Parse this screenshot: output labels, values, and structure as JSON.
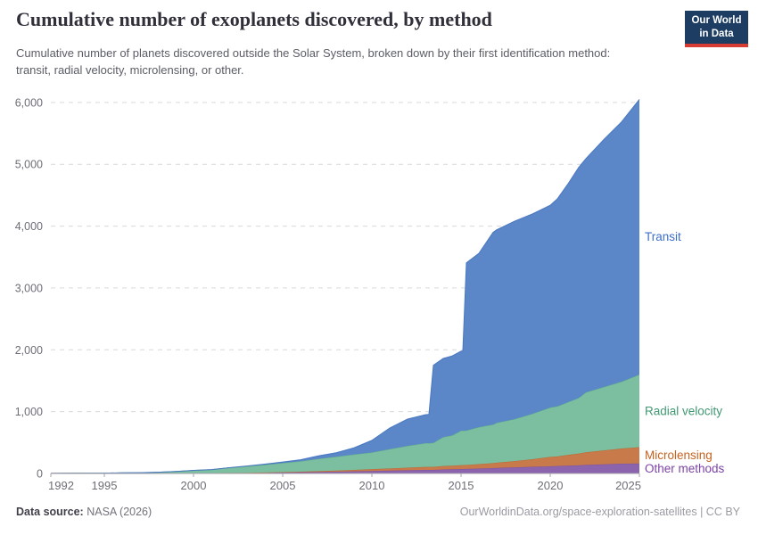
{
  "header": {
    "title": "Cumulative number of exoplanets discovered, by method",
    "subtitle": "Cumulative number of planets discovered outside the Solar System, broken down by their first identification method: transit, radial velocity, microlensing, or other.",
    "logo": {
      "line1": "Our World",
      "line2": "in Data",
      "bg_color": "#1d3d63",
      "accent_color": "#d73c32"
    }
  },
  "chart_data": {
    "type": "area",
    "stacked": true,
    "title": "Cumulative number of exoplanets discovered, by method",
    "xlabel": "",
    "ylabel": "",
    "xlim": [
      1992,
      2025
    ],
    "ylim": [
      0,
      6200
    ],
    "grid": true,
    "legend_position": "labels-at-right-edge",
    "x_ticks": [
      1992,
      1995,
      2000,
      2005,
      2010,
      2015,
      2020,
      2025
    ],
    "y_ticks": [
      0,
      1000,
      2000,
      3000,
      4000,
      5000,
      6000
    ],
    "x": [
      1992,
      1993,
      1994,
      1995,
      1996,
      1997,
      1998,
      1999,
      2000,
      2001,
      2002,
      2003,
      2004,
      2005,
      2006,
      2007,
      2008,
      2009,
      2010,
      2011,
      2012,
      2013,
      2013.2,
      2013.45,
      2014,
      2014.5,
      2015,
      2015.1,
      2015.3,
      2016,
      2016.8,
      2017,
      2018,
      2019,
      2020,
      2020.4,
      2021,
      2021.6,
      2022,
      2023,
      2024,
      2025
    ],
    "series": [
      {
        "name": "Other methods",
        "color": "#8c63ad",
        "edge_color": "#7d53a0",
        "label_color": "#7d43a6",
        "values": [
          2,
          3,
          4,
          4,
          4,
          5,
          5,
          5,
          6,
          7,
          8,
          10,
          13,
          16,
          19,
          23,
          28,
          34,
          40,
          46,
          52,
          58,
          58,
          58,
          65,
          68,
          72,
          72,
          73,
          80,
          87,
          90,
          100,
          108,
          116,
          120,
          126,
          132,
          138,
          148,
          158,
          160
        ]
      },
      {
        "name": "Microlensing",
        "color": "#c87a4a",
        "edge_color": "#b96a35",
        "label_color": "#c6621f",
        "values": [
          0,
          0,
          0,
          0,
          0,
          0,
          0,
          0,
          0,
          0,
          1,
          1,
          3,
          6,
          10,
          14,
          19,
          24,
          30,
          36,
          42,
          48,
          48,
          48,
          55,
          58,
          63,
          63,
          64,
          72,
          80,
          84,
          100,
          122,
          152,
          156,
          175,
          190,
          205,
          225,
          245,
          265
        ]
      },
      {
        "name": "Radial velocity",
        "color": "#7cbea0",
        "edge_color": "#5fae8c",
        "label_color": "#419873",
        "values": [
          0,
          0,
          0,
          1,
          7,
          8,
          15,
          27,
          42,
          54,
          82,
          104,
          125,
          148,
          170,
          200,
          225,
          250,
          270,
          313,
          353,
          384,
          385,
          389,
          470,
          490,
          557,
          557,
          558,
          598,
          625,
          646,
          680,
          736,
          799,
          810,
          853,
          900,
          969,
          1026,
          1082,
          1175
        ]
      },
      {
        "name": "Transit",
        "color": "#5b86c8",
        "edge_color": "#4a78c0",
        "label_color": "#3d6fc9",
        "values": [
          0,
          0,
          0,
          0,
          0,
          0,
          0,
          0,
          2,
          2,
          3,
          5,
          10,
          15,
          23,
          48,
          63,
          107,
          195,
          340,
          433,
          460,
          465,
          1255,
          1270,
          1284,
          1285,
          1290,
          2712,
          2810,
          3108,
          3120,
          3200,
          3230,
          3270,
          3355,
          3530,
          3728,
          3778,
          4000,
          4200,
          4450
        ]
      }
    ]
  },
  "footer": {
    "source_label": "Data source:",
    "source_value": " NASA (2026)",
    "attribution": "OurWorldinData.org/space-exploration-satellites | CC BY"
  }
}
